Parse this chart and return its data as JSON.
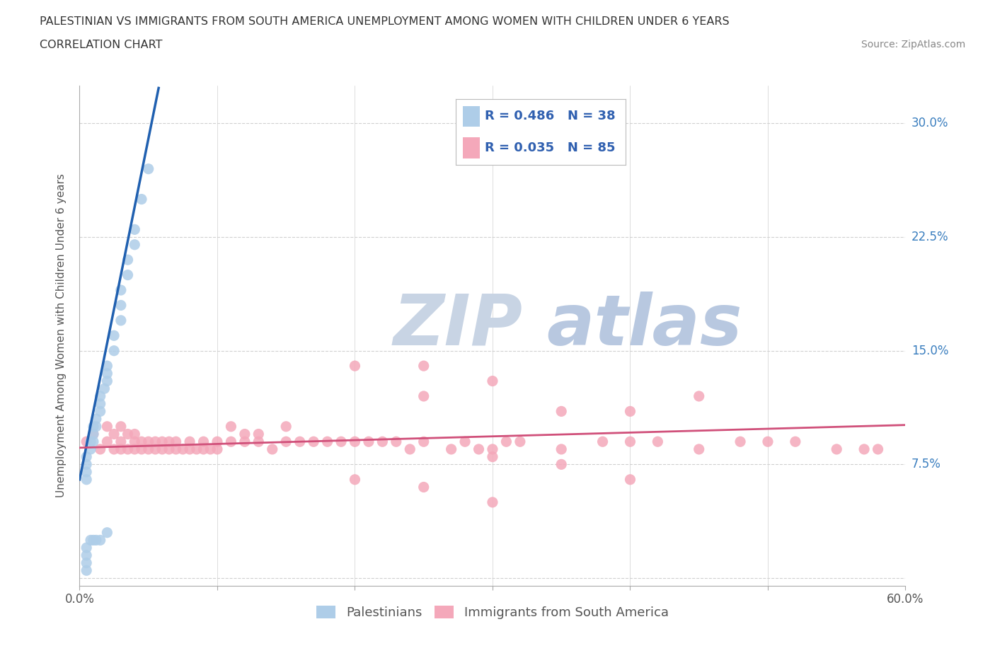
{
  "title_line1": "PALESTINIAN VS IMMIGRANTS FROM SOUTH AMERICA UNEMPLOYMENT AMONG WOMEN WITH CHILDREN UNDER 6 YEARS",
  "title_line2": "CORRELATION CHART",
  "source": "Source: ZipAtlas.com",
  "ylabel": "Unemployment Among Women with Children Under 6 years",
  "xlim": [
    0.0,
    0.6
  ],
  "ylim": [
    -0.005,
    0.325
  ],
  "yticks": [
    0.0,
    0.075,
    0.15,
    0.225,
    0.3
  ],
  "ytick_labels": [
    "",
    "7.5%",
    "15.0%",
    "22.5%",
    "30.0%"
  ],
  "xticks": [
    0.0,
    0.1,
    0.2,
    0.3,
    0.4,
    0.5,
    0.6
  ],
  "xtick_labels": [
    "0.0%",
    "",
    "",
    "",
    "",
    "",
    "60.0%"
  ],
  "bg_color": "#ffffff",
  "grid_color": "#d0d0d0",
  "palestinians_color": "#aecde8",
  "immigrants_color": "#f4a8ba",
  "trend_blue_color": "#2060b0",
  "trend_pink_color": "#d0507a",
  "watermark_color": "#dde5f0",
  "palestinians_x": [
    0.005,
    0.005,
    0.005,
    0.005,
    0.008,
    0.008,
    0.01,
    0.01,
    0.01,
    0.012,
    0.012,
    0.015,
    0.015,
    0.015,
    0.018,
    0.02,
    0.02,
    0.02,
    0.025,
    0.025,
    0.03,
    0.03,
    0.03,
    0.035,
    0.035,
    0.04,
    0.04,
    0.045,
    0.05,
    0.005,
    0.005,
    0.005,
    0.005,
    0.008,
    0.01,
    0.012,
    0.015,
    0.02
  ],
  "palestinians_y": [
    0.065,
    0.07,
    0.075,
    0.08,
    0.085,
    0.09,
    0.09,
    0.095,
    0.1,
    0.1,
    0.105,
    0.11,
    0.115,
    0.12,
    0.125,
    0.13,
    0.135,
    0.14,
    0.15,
    0.16,
    0.17,
    0.18,
    0.19,
    0.2,
    0.21,
    0.22,
    0.23,
    0.25,
    0.27,
    0.005,
    0.01,
    0.015,
    0.02,
    0.025,
    0.025,
    0.025,
    0.025,
    0.03
  ],
  "immigrants_x": [
    0.005,
    0.01,
    0.015,
    0.02,
    0.02,
    0.025,
    0.025,
    0.03,
    0.03,
    0.03,
    0.035,
    0.035,
    0.04,
    0.04,
    0.04,
    0.045,
    0.045,
    0.05,
    0.05,
    0.055,
    0.055,
    0.06,
    0.06,
    0.065,
    0.065,
    0.07,
    0.07,
    0.075,
    0.08,
    0.08,
    0.085,
    0.09,
    0.09,
    0.095,
    0.1,
    0.1,
    0.11,
    0.11,
    0.12,
    0.12,
    0.13,
    0.13,
    0.14,
    0.15,
    0.15,
    0.16,
    0.17,
    0.18,
    0.19,
    0.2,
    0.21,
    0.22,
    0.23,
    0.24,
    0.25,
    0.27,
    0.28,
    0.29,
    0.3,
    0.31,
    0.32,
    0.35,
    0.38,
    0.4,
    0.42,
    0.45,
    0.48,
    0.5,
    0.52,
    0.55,
    0.57,
    0.58,
    0.25,
    0.3,
    0.35,
    0.4,
    0.45,
    0.2,
    0.25,
    0.3,
    0.35,
    0.4,
    0.2,
    0.25,
    0.3
  ],
  "immigrants_y": [
    0.09,
    0.095,
    0.085,
    0.09,
    0.1,
    0.085,
    0.095,
    0.085,
    0.09,
    0.1,
    0.085,
    0.095,
    0.085,
    0.09,
    0.095,
    0.085,
    0.09,
    0.085,
    0.09,
    0.085,
    0.09,
    0.085,
    0.09,
    0.085,
    0.09,
    0.085,
    0.09,
    0.085,
    0.085,
    0.09,
    0.085,
    0.085,
    0.09,
    0.085,
    0.085,
    0.09,
    0.09,
    0.1,
    0.09,
    0.095,
    0.09,
    0.095,
    0.085,
    0.09,
    0.1,
    0.09,
    0.09,
    0.09,
    0.09,
    0.09,
    0.09,
    0.09,
    0.09,
    0.085,
    0.09,
    0.085,
    0.09,
    0.085,
    0.085,
    0.09,
    0.09,
    0.085,
    0.09,
    0.09,
    0.09,
    0.085,
    0.09,
    0.09,
    0.09,
    0.085,
    0.085,
    0.085,
    0.12,
    0.13,
    0.11,
    0.11,
    0.12,
    0.14,
    0.14,
    0.08,
    0.075,
    0.065,
    0.065,
    0.06,
    0.05
  ],
  "trend_blue_slope": 4.5,
  "trend_blue_intercept": 0.065,
  "trend_blue_x_start": 0.0,
  "trend_blue_x_end": 0.058,
  "trend_blue_dashed_x_end": 0.072,
  "trend_pink_slope": 0.025,
  "trend_pink_intercept": 0.086,
  "trend_pink_x_start": 0.0,
  "trend_pink_x_end": 0.6
}
